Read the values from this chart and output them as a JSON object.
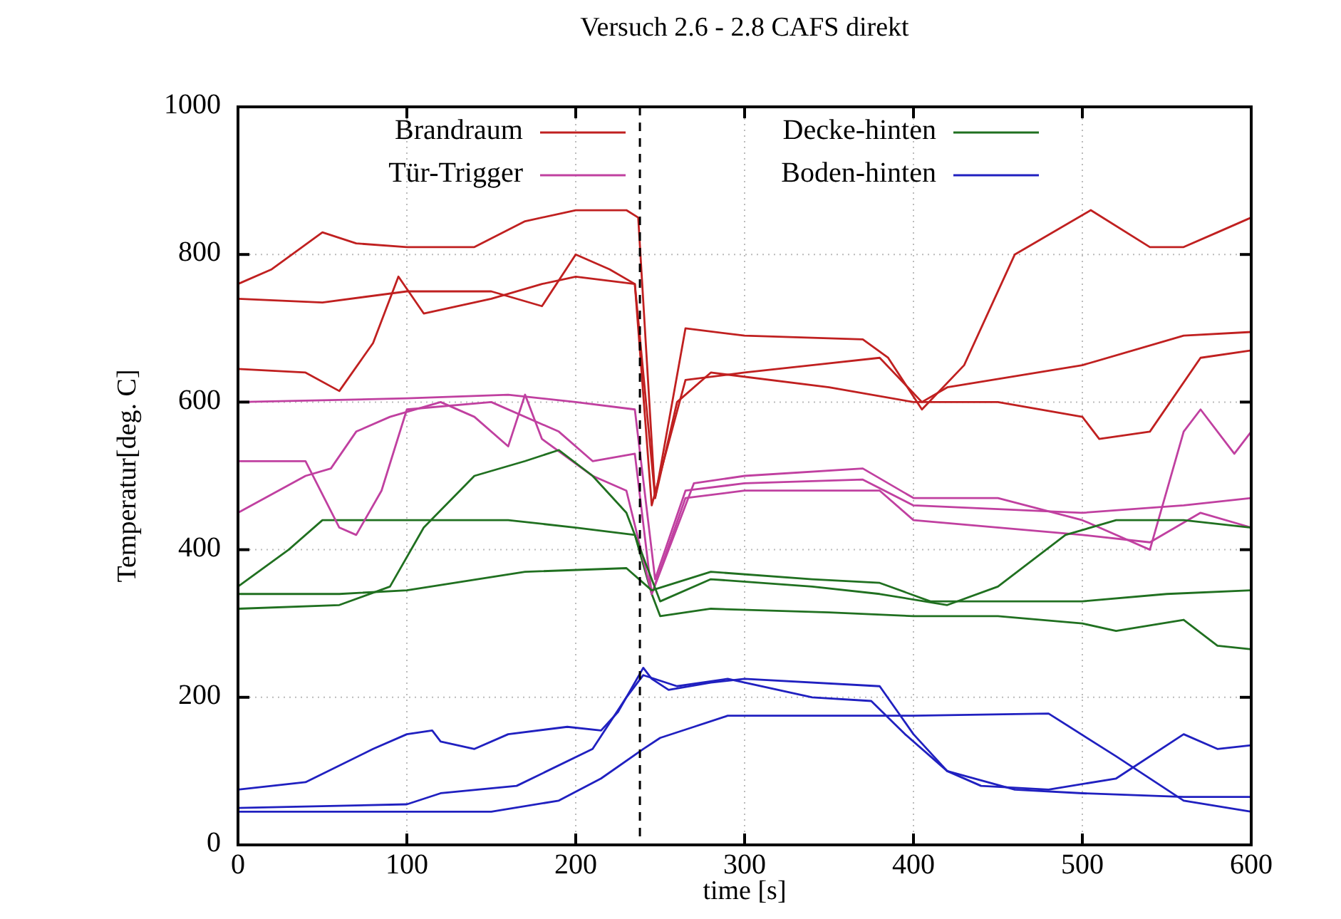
{
  "chart_data": {
    "type": "line",
    "title": "Versuch 2.6 - 2.8 CAFS direkt",
    "xlabel": "time [s]",
    "ylabel": "Temperatur[deg. C]",
    "xlim": [
      0,
      600
    ],
    "xticks": [
      0,
      100,
      200,
      300,
      400,
      500,
      600
    ],
    "ylim": [
      0,
      1000
    ],
    "yticks": [
      0,
      200,
      400,
      600,
      800,
      1000
    ],
    "grid": true,
    "legend": "top",
    "line_style": "solid",
    "ref_lines": [
      {
        "axis": "x",
        "value": 238,
        "line_style": "dashed",
        "color": "#000000"
      }
    ],
    "series": [
      {
        "name": "Brandraum",
        "color": "#c02020",
        "x": [
          0,
          20,
          50,
          70,
          100,
          140,
          170,
          200,
          230,
          237,
          247,
          265,
          300,
          370,
          385,
          405,
          430,
          460,
          505,
          540,
          560,
          580,
          600
        ],
        "values": [
          760,
          780,
          830,
          815,
          810,
          810,
          845,
          860,
          860,
          850,
          470,
          700,
          690,
          685,
          660,
          590,
          650,
          800,
          860,
          810,
          810,
          830,
          850
        ]
      },
      {
        "name": "Decke-hinten",
        "color": "#207020",
        "x": [
          0,
          30,
          50,
          120,
          160,
          200,
          235,
          245,
          250,
          280,
          350,
          400,
          450,
          500,
          520,
          560,
          580,
          600
        ],
        "values": [
          350,
          400,
          440,
          440,
          440,
          430,
          420,
          340,
          310,
          320,
          315,
          310,
          310,
          300,
          290,
          305,
          270,
          265
        ]
      },
      {
        "name": "Tür-Trigger",
        "color": "#c040a0",
        "x": [
          0,
          100,
          160,
          200,
          235,
          247,
          265,
          300,
          370,
          400,
          500,
          560,
          600
        ],
        "values": [
          600,
          605,
          610,
          600,
          590,
          360,
          480,
          490,
          495,
          460,
          450,
          460,
          470
        ]
      },
      {
        "name": "Boden-hinten",
        "color": "#2020c0",
        "x": [
          0,
          40,
          80,
          100,
          115,
          120,
          140,
          160,
          195,
          215,
          225,
          240,
          245,
          255,
          280,
          300,
          380,
          400,
          420,
          440,
          480,
          520,
          560,
          580,
          600
        ],
        "values": [
          75,
          85,
          130,
          150,
          155,
          140,
          130,
          150,
          160,
          155,
          180,
          240,
          225,
          210,
          220,
          225,
          215,
          150,
          100,
          80,
          75,
          90,
          150,
          130,
          135
        ]
      },
      {
        "color": "#c02020",
        "x": [
          0,
          50,
          100,
          150,
          180,
          200,
          220,
          235,
          245,
          265,
          300,
          380,
          405,
          420,
          500,
          560,
          600
        ],
        "values": [
          740,
          735,
          750,
          750,
          730,
          800,
          780,
          760,
          460,
          630,
          640,
          660,
          600,
          620,
          650,
          690,
          695
        ]
      },
      {
        "color": "#c02020",
        "x": [
          0,
          40,
          60,
          80,
          95,
          110,
          150,
          180,
          200,
          235,
          247,
          260,
          280,
          350,
          400,
          450,
          500,
          510,
          540,
          570,
          600
        ],
        "values": [
          645,
          640,
          615,
          680,
          770,
          720,
          740,
          760,
          770,
          760,
          470,
          600,
          640,
          620,
          600,
          600,
          580,
          550,
          560,
          660,
          670
        ]
      },
      {
        "color": "#c040a0",
        "x": [
          0,
          40,
          60,
          70,
          85,
          100,
          150,
          190,
          210,
          235,
          245,
          265,
          300,
          380,
          400,
          500,
          540,
          570,
          600
        ],
        "values": [
          520,
          520,
          430,
          420,
          480,
          590,
          600,
          560,
          520,
          530,
          340,
          470,
          480,
          480,
          440,
          420,
          410,
          450,
          430
        ]
      },
      {
        "color": "#c040a0",
        "x": [
          0,
          40,
          55,
          70,
          90,
          120,
          140,
          160,
          170,
          180,
          210,
          230,
          245,
          270,
          300,
          370,
          400,
          450,
          500,
          540,
          560,
          570,
          590,
          600
        ],
        "values": [
          450,
          500,
          510,
          560,
          580,
          600,
          580,
          540,
          610,
          550,
          500,
          480,
          340,
          490,
          500,
          510,
          470,
          470,
          440,
          400,
          560,
          590,
          530,
          560
        ]
      },
      {
        "color": "#207020",
        "x": [
          0,
          60,
          100,
          170,
          230,
          245,
          280,
          340,
          380,
          410,
          450,
          500,
          550,
          600
        ],
        "values": [
          340,
          340,
          345,
          370,
          375,
          345,
          370,
          360,
          355,
          330,
          330,
          330,
          340,
          345
        ]
      },
      {
        "color": "#207020",
        "x": [
          0,
          60,
          90,
          110,
          140,
          170,
          190,
          210,
          230,
          250,
          280,
          340,
          380,
          420,
          450,
          490,
          520,
          560,
          600
        ],
        "values": [
          320,
          325,
          350,
          430,
          500,
          520,
          535,
          500,
          450,
          330,
          360,
          350,
          340,
          325,
          350,
          420,
          440,
          440,
          430
        ]
      },
      {
        "color": "#2020c0",
        "x": [
          0,
          100,
          120,
          165,
          210,
          230,
          240,
          260,
          290,
          340,
          375,
          395,
          420,
          460,
          500,
          560,
          600
        ],
        "values": [
          50,
          55,
          70,
          80,
          130,
          200,
          230,
          215,
          225,
          200,
          195,
          150,
          100,
          75,
          70,
          65,
          65
        ]
      },
      {
        "color": "#2020c0",
        "x": [
          0,
          150,
          190,
          215,
          240,
          250,
          270,
          290,
          340,
          400,
          480,
          520,
          560,
          600
        ],
        "values": [
          45,
          45,
          60,
          90,
          130,
          145,
          160,
          175,
          175,
          175,
          178,
          120,
          60,
          45
        ]
      }
    ]
  }
}
